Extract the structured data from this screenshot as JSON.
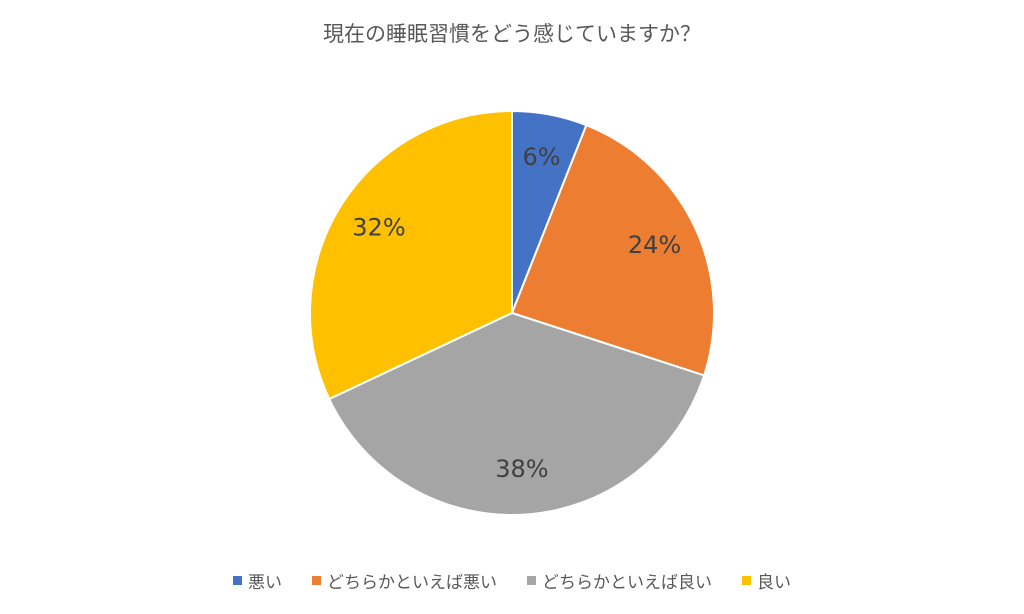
{
  "chart_data": {
    "type": "pie",
    "title": "現在の睡眠習慣をどう感じていますか？",
    "slices": [
      {
        "label": "悪い",
        "value": 6,
        "display": "6%",
        "color": "#4472C4"
      },
      {
        "label": "どちらかといえば悪い",
        "value": 24,
        "display": "24%",
        "color": "#ED7D31"
      },
      {
        "label": "どちらかといえば良い",
        "value": 38,
        "display": "38%",
        "color": "#A5A5A5"
      },
      {
        "label": "良い",
        "value": 32,
        "display": "32%",
        "color": "#FFC000"
      }
    ],
    "legend_position": "bottom"
  }
}
